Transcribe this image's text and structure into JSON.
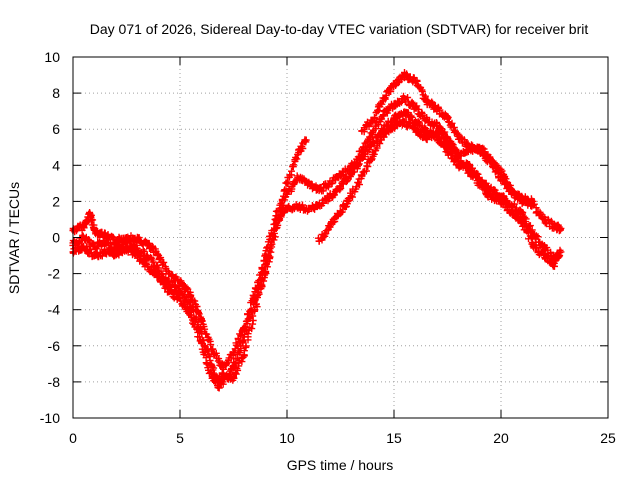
{
  "chart_data": {
    "type": "scatter",
    "title": "Day 071 of 2026, Sidereal Day-to-day VTEC variation (SDTVAR) for receiver brit",
    "xlabel": "GPS time / hours",
    "ylabel": "SDTVAR / TECUs",
    "xlim": [
      0,
      25
    ],
    "ylim": [
      -10,
      10
    ],
    "xticks": [
      0,
      5,
      10,
      15,
      20,
      25
    ],
    "yticks": [
      -10,
      -8,
      -6,
      -4,
      -2,
      0,
      2,
      4,
      6,
      8,
      10
    ],
    "xtick_labels": [
      "0",
      "5",
      "10",
      "15",
      "20",
      "25"
    ],
    "ytick_labels": [
      "-10",
      "-8",
      "-6",
      "-4",
      "-2",
      "0",
      "2",
      "4",
      "6",
      "8",
      "10"
    ],
    "grid": true,
    "marker": "+",
    "color": "#ff0000",
    "series": [
      {
        "name": "track-a",
        "points": [
          [
            0,
            0.4
          ],
          [
            0.5,
            0.6
          ],
          [
            0.8,
            1.3
          ],
          [
            1.0,
            0.4
          ],
          [
            1.5,
            0.1
          ],
          [
            2,
            -0.2
          ],
          [
            2.5,
            0
          ],
          [
            3,
            -0.1
          ],
          [
            3.5,
            -0.4
          ],
          [
            4,
            -1
          ],
          [
            4.5,
            -2
          ],
          [
            5,
            -2.5
          ],
          [
            5.5,
            -3.2
          ],
          [
            6,
            -4.5
          ],
          [
            6.5,
            -6.2
          ],
          [
            7,
            -7.2
          ],
          [
            7.5,
            -6.4
          ],
          [
            8,
            -5
          ],
          [
            8.5,
            -3
          ],
          [
            9,
            -1
          ],
          [
            9.5,
            1.2
          ],
          [
            10,
            3
          ],
          [
            10.5,
            4.6
          ],
          [
            10.9,
            5.4
          ]
        ]
      },
      {
        "name": "track-b",
        "points": [
          [
            0,
            -0.3
          ],
          [
            0.5,
            0
          ],
          [
            1,
            -0.5
          ],
          [
            1.5,
            -0.3
          ],
          [
            2,
            -0.6
          ],
          [
            2.5,
            -0.2
          ],
          [
            3,
            -0.6
          ],
          [
            3.5,
            -1.1
          ],
          [
            4,
            -1.8
          ],
          [
            4.5,
            -2.6
          ],
          [
            5,
            -3
          ],
          [
            5.5,
            -3.8
          ],
          [
            6,
            -5.3
          ],
          [
            6.5,
            -7.2
          ],
          [
            6.8,
            -8.3
          ],
          [
            7,
            -7.6
          ],
          [
            7.5,
            -7.8
          ],
          [
            8,
            -6.5
          ],
          [
            8.5,
            -4
          ],
          [
            9,
            -2
          ],
          [
            9.5,
            0.5
          ],
          [
            10,
            2.4
          ],
          [
            10.5,
            3.3
          ],
          [
            11,
            3
          ],
          [
            11.5,
            2.6
          ],
          [
            12,
            3
          ],
          [
            12.5,
            3.4
          ],
          [
            13,
            3.9
          ],
          [
            13.5,
            4.8
          ],
          [
            14,
            5.8
          ],
          [
            14.5,
            6.8
          ],
          [
            15,
            7.4
          ],
          [
            15.5,
            7.7
          ],
          [
            16,
            7.2
          ],
          [
            16.5,
            6.5
          ],
          [
            17,
            6.2
          ],
          [
            17.5,
            5.5
          ],
          [
            18,
            4.6
          ],
          [
            18.5,
            4.9
          ],
          [
            19,
            4.8
          ],
          [
            19.5,
            4.2
          ],
          [
            20,
            3.2
          ],
          [
            20.5,
            2.5
          ],
          [
            21,
            2
          ],
          [
            21.5,
            1.8
          ],
          [
            22,
            1
          ],
          [
            22.5,
            0.6
          ],
          [
            22.8,
            0.5
          ]
        ]
      },
      {
        "name": "track-c",
        "points": [
          [
            0,
            -0.8
          ],
          [
            0.5,
            -0.5
          ],
          [
            1,
            -1
          ],
          [
            1.5,
            -0.8
          ],
          [
            2,
            -0.9
          ],
          [
            2.5,
            -0.6
          ],
          [
            3,
            -1
          ],
          [
            3.5,
            -1.6
          ],
          [
            4,
            -2.2
          ],
          [
            4.5,
            -3
          ],
          [
            5,
            -3.4
          ],
          [
            5.5,
            -4.3
          ],
          [
            6,
            -5.8
          ],
          [
            6.5,
            -7.8
          ],
          [
            7,
            -8
          ],
          [
            7.5,
            -7.2
          ],
          [
            8,
            -5.5
          ],
          [
            8.5,
            -3.5
          ],
          [
            9,
            -1.5
          ],
          [
            9.5,
            0.8
          ],
          [
            10,
            1.6
          ],
          [
            10.5,
            1.7
          ],
          [
            11,
            1.6
          ],
          [
            11.5,
            1.8
          ],
          [
            12,
            2.3
          ],
          [
            12.5,
            2.8
          ],
          [
            13,
            3.5
          ],
          [
            13.5,
            4.4
          ],
          [
            14,
            5.2
          ],
          [
            14.5,
            6
          ],
          [
            15,
            6.6
          ],
          [
            15.5,
            6.9
          ],
          [
            16,
            6.4
          ],
          [
            16.5,
            5.9
          ],
          [
            17,
            5.6
          ],
          [
            17.5,
            4.8
          ],
          [
            18,
            4
          ],
          [
            18.5,
            4
          ],
          [
            19,
            3.2
          ],
          [
            19.5,
            2.7
          ],
          [
            20,
            2.3
          ],
          [
            20.5,
            1.8
          ],
          [
            21,
            1.3
          ],
          [
            21.5,
            0.2
          ],
          [
            22,
            -0.5
          ],
          [
            22.5,
            -1.2
          ],
          [
            22.8,
            -0.8
          ]
        ]
      },
      {
        "name": "track-d",
        "points": [
          [
            11.5,
            -0.2
          ],
          [
            12,
            0.6
          ],
          [
            12.5,
            1.4
          ],
          [
            13,
            2.3
          ],
          [
            13.5,
            3.4
          ],
          [
            14,
            4.6
          ],
          [
            14.5,
            5.6
          ],
          [
            15,
            6.2
          ],
          [
            15.5,
            6.4
          ],
          [
            16,
            6
          ],
          [
            16.5,
            5.5
          ],
          [
            17,
            5.8
          ],
          [
            17.5,
            5.2
          ],
          [
            18,
            4.4
          ],
          [
            18.5,
            3.6
          ],
          [
            19,
            3
          ],
          [
            19.5,
            2.3
          ],
          [
            20,
            2
          ],
          [
            20.5,
            1.4
          ],
          [
            21,
            0.8
          ],
          [
            21.5,
            -0.4
          ],
          [
            22,
            -1
          ],
          [
            22.5,
            -1.6
          ]
        ]
      },
      {
        "name": "track-e",
        "points": [
          [
            13.5,
            5.9
          ],
          [
            14,
            6.5
          ],
          [
            14.5,
            7.6
          ],
          [
            15,
            8.5
          ],
          [
            15.5,
            9
          ],
          [
            16,
            8.7
          ],
          [
            16.5,
            7.6
          ],
          [
            17,
            7.1
          ],
          [
            17.5,
            6.6
          ],
          [
            18,
            5.6
          ],
          [
            18.5,
            5
          ],
          [
            19,
            5
          ],
          [
            19.5,
            4.3
          ],
          [
            20,
            3.6
          ],
          [
            20.5,
            2.6
          ],
          [
            21,
            2.2
          ],
          [
            21.5,
            2
          ]
        ]
      }
    ]
  }
}
